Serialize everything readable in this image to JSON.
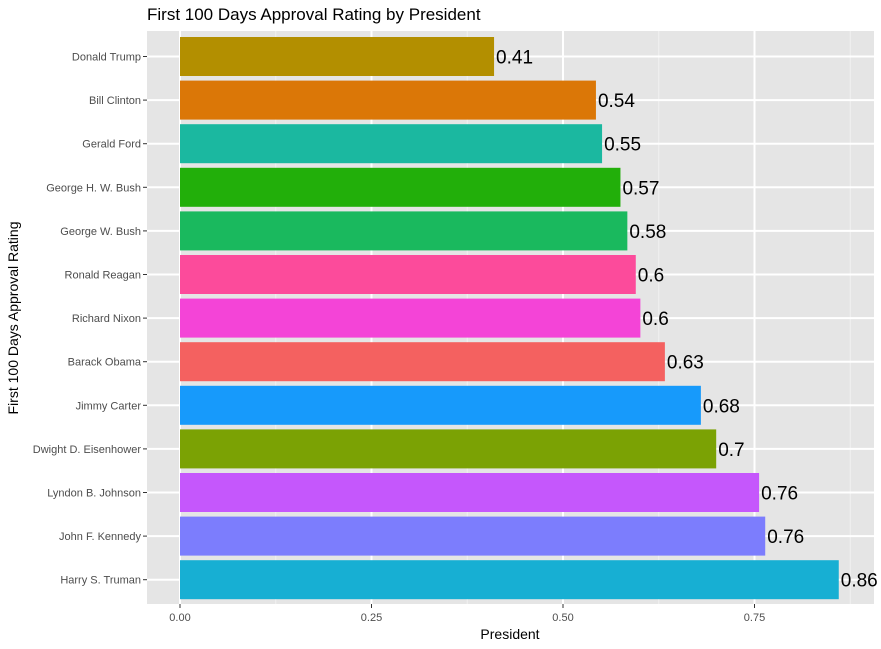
{
  "chart_data": {
    "type": "bar",
    "orientation": "horizontal",
    "title": "First 100 Days Approval Rating by President",
    "xlabel": "President",
    "ylabel": "First 100 Days Approval Rating",
    "xlim": [
      -0.1,
      0.86
    ],
    "x_ticks": [
      0.0,
      0.25,
      0.5,
      0.75
    ],
    "x_tick_labels": [
      "0.00",
      "0.25",
      "0.50",
      "0.75"
    ],
    "grid": true,
    "legend": "none",
    "panel_background": "#e5e5e5",
    "bars": [
      {
        "category": "Donald Trump",
        "value": 0.41,
        "label": "0.41",
        "color": "#b38f00"
      },
      {
        "category": "Bill Clinton",
        "value": 0.543,
        "label": "0.54",
        "color": "#db7707"
      },
      {
        "category": "Gerald Ford",
        "value": 0.551,
        "label": "0.55",
        "color": "#1bb8a0"
      },
      {
        "category": "George H. W. Bush",
        "value": 0.575,
        "label": "0.57",
        "color": "#22af0a"
      },
      {
        "category": "George W. Bush",
        "value": 0.584,
        "label": "0.58",
        "color": "#1ab95e"
      },
      {
        "category": "Ronald Reagan",
        "value": 0.595,
        "label": "0.6",
        "color": "#fc4b9b"
      },
      {
        "category": "Richard Nixon",
        "value": 0.601,
        "label": "0.6",
        "color": "#f444d7"
      },
      {
        "category": "Barack Obama",
        "value": 0.633,
        "label": "0.63",
        "color": "#f46160"
      },
      {
        "category": "Jimmy Carter",
        "value": 0.68,
        "label": "0.68",
        "color": "#179afb"
      },
      {
        "category": "Dwight D. Eisenhower",
        "value": 0.7,
        "label": "0.7",
        "color": "#7ba204"
      },
      {
        "category": "Lyndon B. Johnson",
        "value": 0.756,
        "label": "0.76",
        "color": "#c557fc"
      },
      {
        "category": "John F. Kennedy",
        "value": 0.764,
        "label": "0.76",
        "color": "#7c7dfd"
      },
      {
        "category": "Harry S. Truman",
        "value": 0.86,
        "label": "0.86",
        "color": "#17afd3"
      }
    ]
  }
}
